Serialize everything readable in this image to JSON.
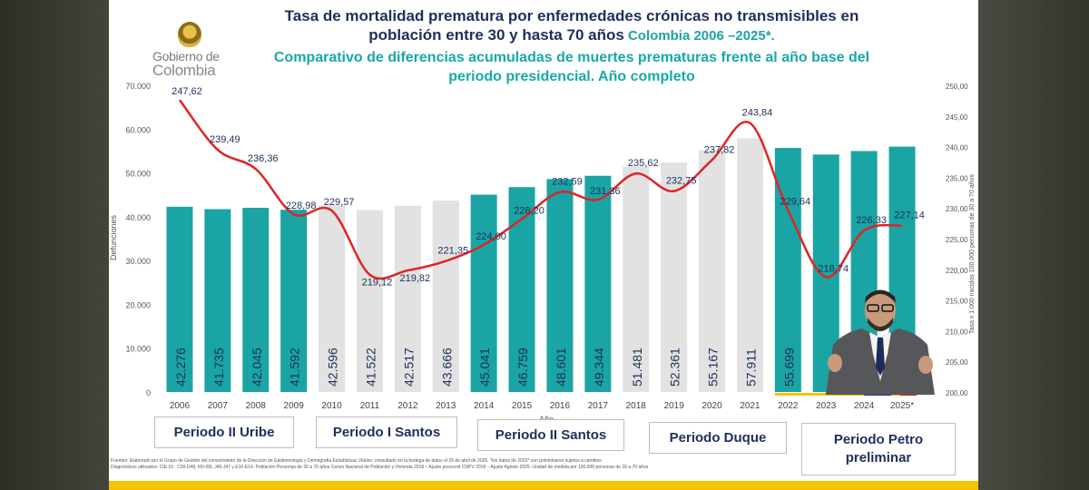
{
  "title_line1": "Tasa de mortalidad prematura por enfermedades crónicas no transmisibles  en",
  "title_line2a": "población entre 30 y hasta 70 años",
  "title_line2b": " Colombia 2006 –2025*.",
  "title_line3": "Comparativo de diferencias acumuladas de muertes prematuras frente al año base del",
  "title_line4": "periodo presidencial. Año completo",
  "logo": {
    "line1": "Gobierno de",
    "line2": "Colombia"
  },
  "colors": {
    "teal": "#1aa4a4",
    "gray": "#e2e2e2",
    "line": "#e02424",
    "navy": "#1e2f5c",
    "yellow": "#f5c400"
  },
  "chart_data": {
    "type": "bar",
    "categories": [
      "2006",
      "2007",
      "2008",
      "2009",
      "2010",
      "2011",
      "2012",
      "2013",
      "2014",
      "2015",
      "2016",
      "2017",
      "2018",
      "2019",
      "2020",
      "2021",
      "2022",
      "2023",
      "2024",
      "2025*"
    ],
    "xlabel": "Año",
    "ylabel": "Defunciones",
    "y2label": "Tasa x 1.000 nacidos 100.000 personas de 30 a 70 años",
    "ylim": [
      0,
      70000
    ],
    "y2lim": [
      200,
      250
    ],
    "yticks": [
      "0",
      "10.000",
      "20.000",
      "30.000",
      "40.000",
      "50.000",
      "60.000",
      "70.000"
    ],
    "y2ticks": [
      "200,00",
      "205,00",
      "210,00",
      "215,00",
      "220,00",
      "225,00",
      "230,00",
      "235,00",
      "240,00",
      "245,00",
      "250,00"
    ],
    "series": [
      {
        "kind": "bar",
        "values": [
          42276,
          41735,
          42045,
          41592,
          42596,
          41522,
          42517,
          43666,
          45041,
          46759,
          48601,
          49344,
          51481,
          52361,
          55167,
          57911,
          55699,
          54200,
          55000,
          56000
        ],
        "labels": [
          "42.276",
          "41.735",
          "42.045",
          "41.592",
          "42.596",
          "41.522",
          "42.517",
          "43.666",
          "45.041",
          "46.759",
          "48.601",
          "49.344",
          "51.481",
          "52.361",
          "55.167",
          "57.911",
          "55.699",
          "",
          "",
          ""
        ],
        "colors": [
          "teal",
          "teal",
          "teal",
          "teal",
          "gray",
          "gray",
          "gray",
          "gray",
          "teal",
          "teal",
          "teal",
          "teal",
          "gray",
          "gray",
          "gray",
          "gray",
          "teal",
          "teal",
          "teal",
          "teal"
        ]
      },
      {
        "kind": "line",
        "axis": "right",
        "values": [
          247.62,
          239.49,
          236.36,
          228.98,
          229.57,
          219.12,
          219.82,
          221.35,
          224.0,
          228.2,
          232.59,
          231.36,
          235.62,
          232.75,
          237.82,
          243.84,
          229.64,
          218.74,
          226.33,
          227.14
        ],
        "labels": [
          "247,62",
          "239,49",
          "236,36",
          "228,98",
          "229,57",
          "219,12",
          "219,82",
          "221,35",
          "224,00",
          "228,20",
          "232,59",
          "231,36",
          "235,62",
          "232,75",
          "237,82",
          "243,84",
          "229,64",
          "218,74",
          "226,33",
          "227,14"
        ]
      }
    ],
    "grid": false,
    "legend": "none"
  },
  "periods": [
    {
      "label": "Periodo II Uribe"
    },
    {
      "label": "Periodo I Santos"
    },
    {
      "label": "Periodo II Santos"
    },
    {
      "label": "Periodo Duque"
    },
    {
      "label": "Periodo Petro preliminar"
    }
  ],
  "footnote": {
    "line1": "Fuentes:    Elaborado por el Grupo de Gestión del conocimiento de la Dirección de Epidemiología y Demografía.Estadísticas Vitales: consultado en la bodega de datos el  29 de abril de 2025. *los datos de 2025* son preliminares sujetos a cambios",
    "line2": "Diagnósticos utilizados:  CIE 10 : C00-D48, I00-I99, J40-J47 y E10-E14. Población Personas de 30 a 70 años Censo Nacional de Población y Vivienda  2018 – Ajuste poscovid  CNPV 2018 – Ajuste Agosto 2025. Unidad de medida por 100.000 personas de 30 a 70 años"
  }
}
